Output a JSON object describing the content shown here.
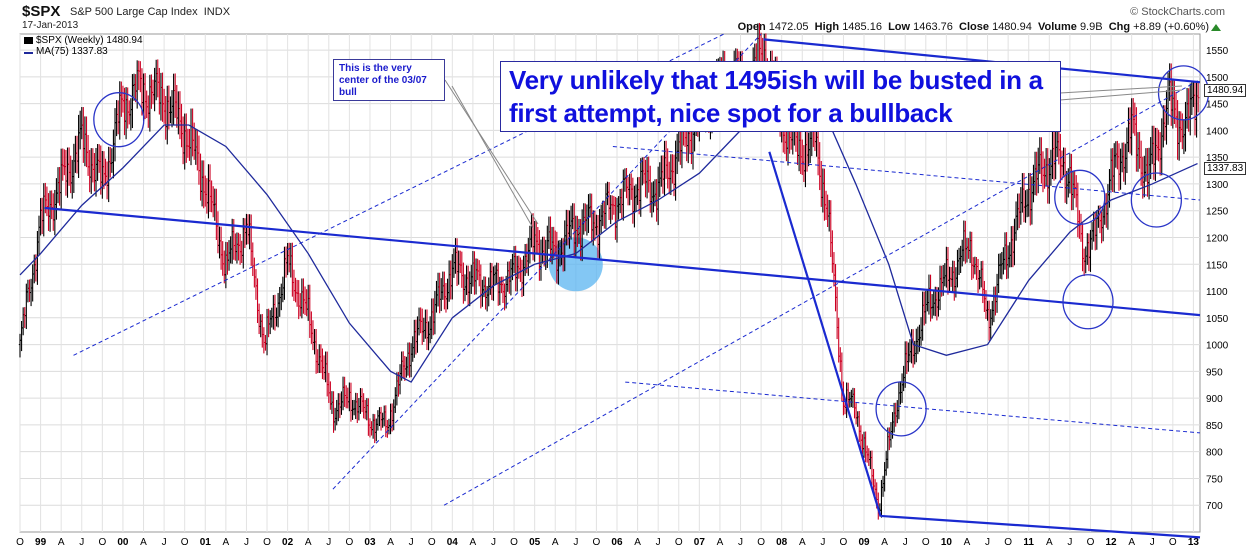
{
  "header": {
    "symbol": "$SPX",
    "name": "S&P 500 Large Cap Index",
    "exchange": "INDX",
    "date": "17-Jan-2013",
    "brand": "© StockCharts.com",
    "open_label": "Open",
    "open": "1472.05",
    "high_label": "High",
    "high": "1485.16",
    "low_label": "Low",
    "low": "1463.76",
    "close_label": "Close",
    "close": "1480.94",
    "volume_label": "Volume",
    "volume": "9.9B",
    "chg_label": "Chg",
    "chg": "+8.89 (+0.60%)"
  },
  "legend": [
    {
      "text": "$SPX (Weekly) 1480.94",
      "color": "#000000"
    },
    {
      "text": "MA(75) 1337.83",
      "color": "#1f2a9c"
    }
  ],
  "annotations": {
    "center_note": "This is the very center of the 03/07 bull",
    "main_note": "Very unlikely that 1495ish will be busted in a first attempt, nice spot for a bullback"
  },
  "price_tags": {
    "last": "1480.94",
    "ma": "1337.83"
  },
  "colors": {
    "up": "#000000",
    "down": "#cc0022",
    "ma": "#1f2a9c",
    "trend": "#1a2ad0",
    "circle": "#2a35c8",
    "highlight": "#5ab4f0"
  },
  "chart_data": {
    "type": "line",
    "title": "$SPX S&P 500 Large Cap Index INDX",
    "ylim": [
      650,
      1580
    ],
    "y_ticks": [
      700,
      750,
      800,
      850,
      900,
      950,
      1000,
      1050,
      1100,
      1150,
      1200,
      1250,
      1300,
      1350,
      1400,
      1450,
      1500,
      1550
    ],
    "x_tick_labels": [
      "O",
      "99",
      "A",
      "J",
      "O",
      "00",
      "A",
      "J",
      "O",
      "01",
      "A",
      "J",
      "O",
      "02",
      "A",
      "J",
      "O",
      "03",
      "A",
      "J",
      "O",
      "04",
      "A",
      "J",
      "O",
      "05",
      "A",
      "J",
      "O",
      "06",
      "A",
      "J",
      "O",
      "07",
      "A",
      "J",
      "O",
      "08",
      "A",
      "J",
      "O",
      "09",
      "A",
      "J",
      "O",
      "10",
      "A",
      "J",
      "O",
      "11",
      "A",
      "J",
      "O",
      "12",
      "A",
      "J",
      "O",
      "13"
    ],
    "x_start": 1998.75,
    "x_end": 2013.08,
    "grid": true,
    "series": [
      {
        "name": "$SPX (Weekly)",
        "x": [
          1998.75,
          1999.0,
          1999.25,
          1999.5,
          1999.75,
          2000.0,
          2000.2,
          2000.5,
          2000.75,
          2001.0,
          2001.25,
          2001.5,
          2001.72,
          2002.0,
          2002.25,
          2002.55,
          2002.78,
          2003.0,
          2003.2,
          2003.5,
          2003.75,
          2004.0,
          2004.25,
          2004.5,
          2004.75,
          2005.0,
          2005.25,
          2005.5,
          2005.75,
          2006.0,
          2006.3,
          2006.5,
          2006.75,
          2007.0,
          2007.2,
          2007.4,
          2007.55,
          2007.78,
          2008.0,
          2008.2,
          2008.4,
          2008.55,
          2008.75,
          2008.9,
          2009.05,
          2009.18,
          2009.4,
          2009.6,
          2009.8,
          2010.0,
          2010.3,
          2010.5,
          2010.75,
          2011.0,
          2011.3,
          2011.5,
          2011.65,
          2011.8,
          2012.0,
          2012.25,
          2012.45,
          2012.7,
          2012.9,
          2013.05
        ],
        "values": [
          1000,
          1230,
          1300,
          1380,
          1300,
          1450,
          1480,
          1460,
          1400,
          1300,
          1150,
          1220,
          1000,
          1150,
          1050,
          880,
          900,
          860,
          850,
          1000,
          1050,
          1140,
          1120,
          1110,
          1130,
          1190,
          1170,
          1220,
          1230,
          1270,
          1300,
          1290,
          1360,
          1430,
          1470,
          1520,
          1470,
          1550,
          1420,
          1360,
          1380,
          1260,
          900,
          880,
          780,
          700,
          900,
          1000,
          1080,
          1120,
          1190,
          1050,
          1180,
          1290,
          1350,
          1320,
          1180,
          1200,
          1310,
          1400,
          1310,
          1450,
          1400,
          1480
        ]
      },
      {
        "name": "MA(75)",
        "x": [
          1998.75,
          1999.0,
          1999.5,
          2000.0,
          2000.5,
          2000.8,
          2001.25,
          2001.75,
          2002.25,
          2002.75,
          2003.25,
          2003.5,
          2004.0,
          2004.5,
          2005.0,
          2005.5,
          2006.0,
          2006.5,
          2007.0,
          2007.5,
          2008.0,
          2008.5,
          2008.9,
          2009.3,
          2009.6,
          2010.0,
          2010.5,
          2011.0,
          2011.5,
          2012.0,
          2012.5,
          2013.05
        ],
        "values": [
          1130,
          1170,
          1260,
          1330,
          1410,
          1410,
          1370,
          1280,
          1170,
          1040,
          950,
          930,
          1050,
          1110,
          1150,
          1170,
          1230,
          1270,
          1320,
          1400,
          1470,
          1440,
          1300,
          1150,
          1000,
          980,
          1000,
          1120,
          1210,
          1270,
          1300,
          1338
        ]
      }
    ],
    "trend_lines": [
      {
        "style": "solid",
        "points": [
          [
            1999.05,
            1255
          ],
          [
            2013.08,
            1055
          ]
        ]
      },
      {
        "style": "solid",
        "points": [
          [
            2007.78,
            1570
          ],
          [
            2013.08,
            1490
          ]
        ]
      },
      {
        "style": "solid",
        "points": [
          [
            2007.85,
            1360
          ],
          [
            2009.2,
            680
          ]
        ]
      },
      {
        "style": "solid",
        "points": [
          [
            2009.2,
            680
          ],
          [
            2013.08,
            640
          ]
        ]
      },
      {
        "style": "dashed",
        "points": [
          [
            2002.55,
            730
          ],
          [
            2007.75,
            1580
          ]
        ]
      },
      {
        "style": "dashed",
        "points": [
          [
            1999.4,
            980
          ],
          [
            2007.3,
            1580
          ]
        ]
      },
      {
        "style": "dashed",
        "points": [
          [
            2003.9,
            700
          ],
          [
            2013.08,
            1495
          ]
        ]
      },
      {
        "style": "dashed",
        "points": [
          [
            2005.95,
            1370
          ],
          [
            2013.08,
            1270
          ]
        ]
      },
      {
        "style": "dashed",
        "points": [
          [
            2006.1,
            930
          ],
          [
            2013.08,
            835
          ]
        ]
      }
    ],
    "circles": [
      {
        "x": 1999.95,
        "y": 1420
      },
      {
        "x": 2009.45,
        "y": 880
      },
      {
        "x": 2011.62,
        "y": 1275
      },
      {
        "x": 2011.72,
        "y": 1080
      },
      {
        "x": 2012.55,
        "y": 1270
      },
      {
        "x": 2012.88,
        "y": 1470
      }
    ],
    "highlight": {
      "x": 2005.5,
      "y": 1150
    }
  }
}
